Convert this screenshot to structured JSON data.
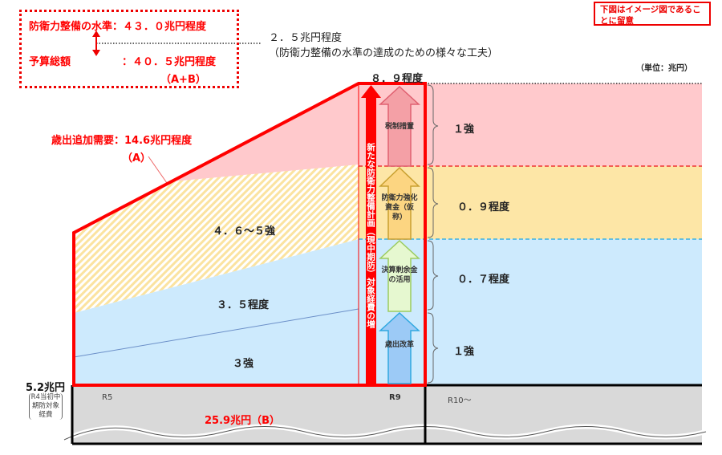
{
  "note": {
    "text": "下図はイメージ図であることに留意"
  },
  "summary_box": {
    "level_label": "防衛力整備の水準：４３．０兆円程度",
    "budget_label": "予算総額",
    "budget_value": "：４０．５兆円程度",
    "budget_formula": "（A+B）"
  },
  "gap": {
    "value": "２．５兆円程度",
    "desc": "（防衛力整備の水準の達成のための様々な工夫）"
  },
  "unit": "（単位：兆円）",
  "peak_label": "８．９程度",
  "additional_demand": {
    "label": "歳出追加需要：14.6兆円程度",
    "tag": "（A）"
  },
  "regions": {
    "hatched": "４．６～５強",
    "blue_upper": "３．５程度",
    "blue_lower": "３強"
  },
  "vertical_arrow_label": "新たな防衛力整備計画（現中期防）対象経費の増",
  "sources": [
    {
      "label": "税制措置",
      "amount": "１強",
      "color": "#f4a0a6"
    },
    {
      "label": "防衛力強化資金（仮称）",
      "amount": "０．９程度",
      "color": "#fcd581"
    },
    {
      "label": "決算剰余金の活用",
      "amount": "０．７程度",
      "color": "#e6f8d0"
    },
    {
      "label": "歳出改革",
      "amount": "１強",
      "color": "#9ccaf6"
    }
  ],
  "baseline": {
    "value": "5.2兆円",
    "desc": "R4当初中期防対象経費"
  },
  "axis": {
    "start": "R5",
    "end": "R9",
    "after": "R10～"
  },
  "base_total": "25.9兆円（B）",
  "colors": {
    "accent": "#ff0000",
    "pink": "#ffc9cc",
    "yellow": "#fde6a6",
    "blue": "#cdeafd",
    "gray": "#d9d9d9"
  }
}
